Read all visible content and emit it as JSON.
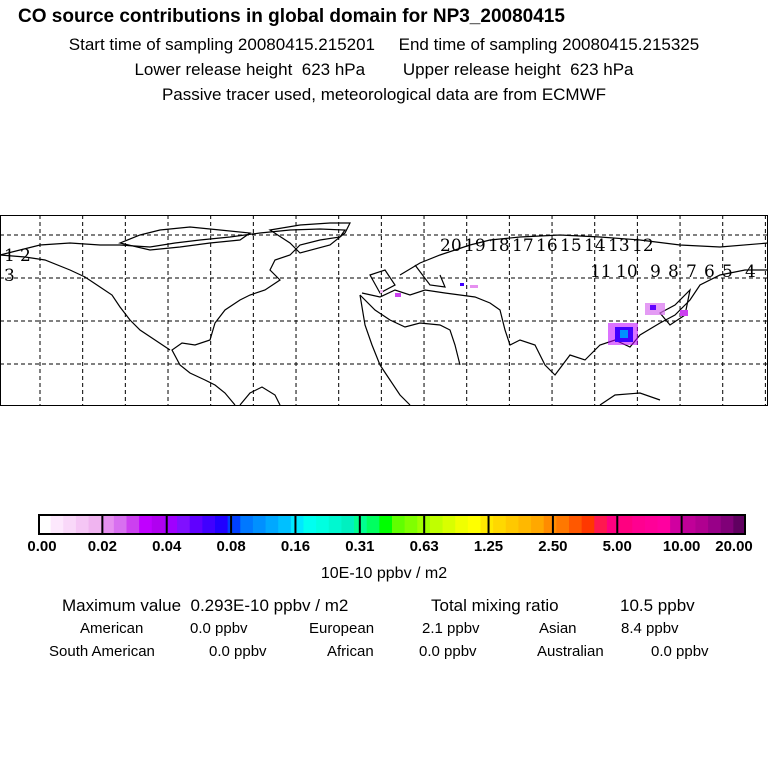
{
  "header": {
    "title": "CO  source contributions in global domain for NP3_20080415",
    "start_label": "Start time of sampling",
    "start_value": "20080415.215201",
    "end_label": "End time of sampling",
    "end_value": "20080415.215325",
    "lower_label": "Lower release height",
    "lower_value": "623 hPa",
    "upper_label": "Upper release height",
    "upper_value": "623 hPa",
    "note": "Passive tracer used, meteorological data are from ECMWF"
  },
  "map": {
    "trajectory_labels": [
      "1",
      "2",
      "3",
      "4",
      "5",
      "6",
      "7",
      "8",
      "9",
      "10",
      "11",
      "12",
      "13",
      "14",
      "15",
      "16",
      "17",
      "18",
      "19",
      "20"
    ]
  },
  "colorbar": {
    "ticks": [
      "0.00",
      "0.02",
      "0.04",
      "0.08",
      "0.16",
      "0.31",
      "0.63",
      "1.25",
      "2.50",
      "5.00",
      "10.00",
      "20.00"
    ],
    "unit": "10E-10 ppbv / m2",
    "colors": [
      "#ffffff",
      "#fde8fd",
      "#f9d8f9",
      "#f5c6f5",
      "#f0b4f0",
      "#e690f0",
      "#d870f0",
      "#cc40f0",
      "#c000ff",
      "#b000f0",
      "#a000ff",
      "#8010ff",
      "#6000ff",
      "#4000ff",
      "#2000ff",
      "#0040ff",
      "#0078ff",
      "#0090ff",
      "#00a8ff",
      "#00c0ff",
      "#00e8ff",
      "#00fff0",
      "#00ffe0",
      "#00f8d0",
      "#00f0c0",
      "#00ff90",
      "#00ff60",
      "#00ff00",
      "#60ff00",
      "#80ff00",
      "#a0ff00",
      "#c0ff00",
      "#d8ff00",
      "#f0ff00",
      "#ffff00",
      "#ffe800",
      "#ffd800",
      "#ffc800",
      "#ffb800",
      "#ffa800",
      "#ff8c00",
      "#ff7800",
      "#ff5800",
      "#ff3800",
      "#ff1850",
      "#ff0080",
      "#ff0080",
      "#ff0090",
      "#ff0098",
      "#ff00a0",
      "#d000a0",
      "#c00098",
      "#b00090",
      "#980088",
      "#800078",
      "#600060"
    ]
  },
  "stats": {
    "max_label": "Maximum value",
    "max_value": "0.293E-10 ppbv / m2",
    "total_label": "Total mixing ratio",
    "total_value": "10.5 ppbv",
    "regions": [
      {
        "name": "American",
        "value": "0.0 ppbv"
      },
      {
        "name": "European",
        "value": "2.1 ppbv"
      },
      {
        "name": "Asian",
        "value": "8.4 ppbv"
      },
      {
        "name": "South American",
        "value": "0.0 ppbv"
      },
      {
        "name": "African",
        "value": "0.0 ppbv"
      },
      {
        "name": "Australian",
        "value": "0.0 ppbv"
      }
    ]
  }
}
